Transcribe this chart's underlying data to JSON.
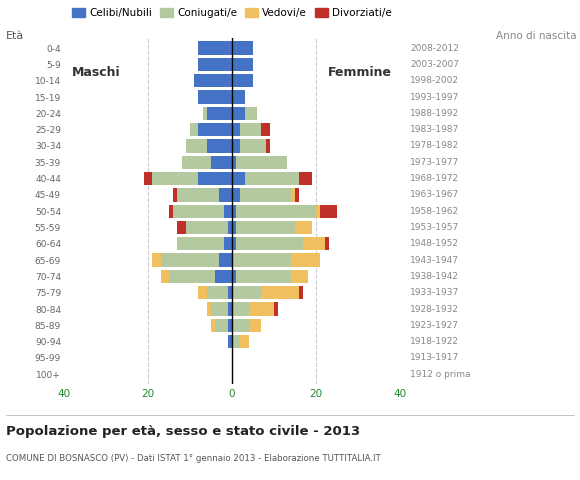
{
  "age_groups": [
    "100+",
    "95-99",
    "90-94",
    "85-89",
    "80-84",
    "75-79",
    "70-74",
    "65-69",
    "60-64",
    "55-59",
    "50-54",
    "45-49",
    "40-44",
    "35-39",
    "30-34",
    "25-29",
    "20-24",
    "15-19",
    "10-14",
    "5-9",
    "0-4"
  ],
  "birth_years": [
    "1912 o prima",
    "1913-1917",
    "1918-1922",
    "1923-1927",
    "1928-1932",
    "1933-1937",
    "1938-1942",
    "1943-1947",
    "1948-1952",
    "1953-1957",
    "1958-1962",
    "1963-1967",
    "1968-1972",
    "1973-1977",
    "1978-1982",
    "1983-1987",
    "1988-1992",
    "1993-1997",
    "1998-2002",
    "2003-2007",
    "2008-2012"
  ],
  "colors": {
    "celibi": "#4472c4",
    "coniugati": "#b5c9a0",
    "vedovi": "#f0c060",
    "divorziati": "#c0302a"
  },
  "males": {
    "celibi": [
      0,
      0,
      1,
      1,
      1,
      1,
      4,
      3,
      2,
      1,
      2,
      3,
      8,
      5,
      6,
      8,
      6,
      8,
      9,
      8,
      8
    ],
    "coniugati": [
      0,
      0,
      0,
      3,
      4,
      5,
      11,
      14,
      11,
      10,
      12,
      10,
      11,
      7,
      5,
      2,
      1,
      0,
      0,
      0,
      0
    ],
    "vedovi": [
      0,
      0,
      0,
      1,
      1,
      2,
      2,
      2,
      0,
      0,
      0,
      0,
      0,
      0,
      0,
      0,
      0,
      0,
      0,
      0,
      0
    ],
    "divorziati": [
      0,
      0,
      0,
      0,
      0,
      0,
      0,
      0,
      0,
      2,
      1,
      1,
      2,
      0,
      0,
      0,
      0,
      0,
      0,
      0,
      0
    ]
  },
  "females": {
    "celibi": [
      0,
      0,
      0,
      0,
      0,
      0,
      1,
      0,
      1,
      1,
      1,
      2,
      3,
      1,
      2,
      2,
      3,
      3,
      5,
      5,
      5
    ],
    "coniugati": [
      0,
      0,
      2,
      4,
      4,
      7,
      13,
      14,
      16,
      14,
      19,
      12,
      13,
      12,
      6,
      5,
      3,
      0,
      0,
      0,
      0
    ],
    "vedovi": [
      0,
      0,
      2,
      3,
      6,
      9,
      4,
      7,
      5,
      4,
      1,
      1,
      0,
      0,
      0,
      0,
      0,
      0,
      0,
      0,
      0
    ],
    "divorziati": [
      0,
      0,
      0,
      0,
      1,
      1,
      0,
      0,
      1,
      0,
      4,
      1,
      3,
      0,
      1,
      2,
      0,
      0,
      0,
      0,
      0
    ]
  },
  "title": "Popolazione per età, sesso e stato civile - 2013",
  "subtitle": "COMUNE DI BOSNASCO (PV) - Dati ISTAT 1° gennaio 2013 - Elaborazione TUTTITALIA.IT",
  "xlabel_left": "Età",
  "xlabel_right": "Anno di nascita",
  "xlim": 40,
  "legend_labels": [
    "Celibi/Nubili",
    "Coniugati/e",
    "Vedovi/e",
    "Divorziati/e"
  ],
  "label_maschi": "Maschi",
  "label_femmine": "Femmine",
  "bg_color": "#ffffff",
  "grid_color": "#cccccc"
}
